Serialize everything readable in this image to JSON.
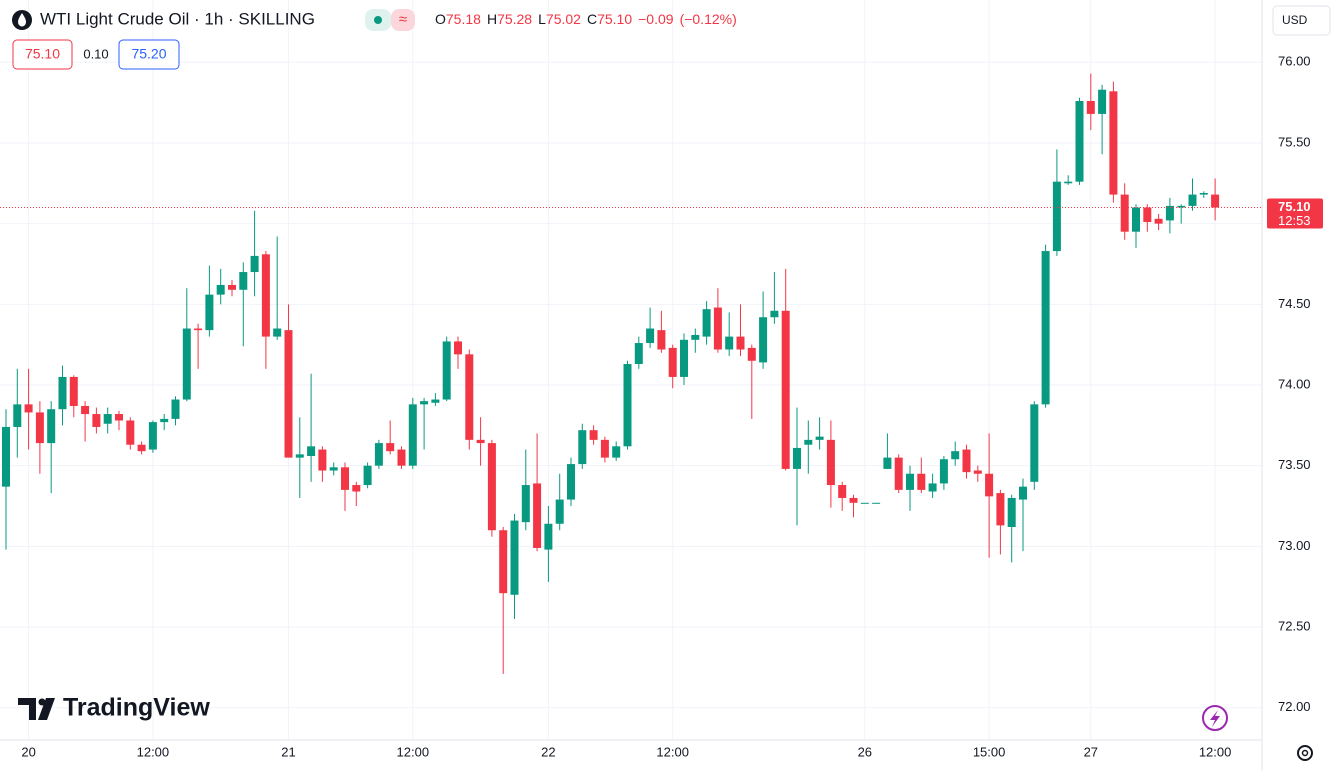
{
  "chart_data": {
    "type": "candlestick",
    "title": "WTI Light Crude Oil · 1h · SKILLING",
    "ohlc": {
      "names": [
        "O",
        "H",
        "L",
        "C"
      ],
      "values": [
        75.18,
        75.28,
        75.02,
        75.1
      ],
      "value_labels": [
        "75.18",
        "75.28",
        "75.02",
        "75.10"
      ]
    },
    "change": {
      "values": [
        -0.09,
        -0.12
      ],
      "value_labels": [
        "−0.09",
        "(−0.12%)"
      ]
    },
    "quote": {
      "values": [
        75.1,
        0.1,
        75.2
      ],
      "value_labels": [
        "75.10",
        "0.10",
        "75.20"
      ]
    },
    "currency": "USD",
    "last_price": {
      "value": 75.1,
      "label": "75.10"
    },
    "countdown": "12:53",
    "logo": "TradingView",
    "up_color": "#089981",
    "down_color": "#f23645",
    "grid": true,
    "xlim": [
      -0.53,
      111.15
    ],
    "xticks": [
      {
        "value": 2,
        "label": "20"
      },
      {
        "value": 13,
        "label": "12:00"
      },
      {
        "value": 25,
        "label": "21"
      },
      {
        "value": 36,
        "label": "12:00"
      },
      {
        "value": 48,
        "label": "22"
      },
      {
        "value": 59,
        "label": "12:00"
      },
      {
        "value": 76,
        "label": "26"
      },
      {
        "value": 87,
        "label": "15:00"
      },
      {
        "value": 96,
        "label": "27"
      },
      {
        "value": 107,
        "label": "12:00"
      }
    ],
    "ylim": [
      71.8,
      76.2
    ],
    "yticks": [
      {
        "value": 72,
        "label": "72.00"
      },
      {
        "value": 72.5,
        "label": "72.50"
      },
      {
        "value": 73,
        "label": "73.00"
      },
      {
        "value": 73.5,
        "label": "73.50"
      },
      {
        "value": 74,
        "label": "74.00"
      },
      {
        "value": 74.5,
        "label": "74.50"
      },
      {
        "value": 75,
        "label": "75.00"
      },
      {
        "value": 75.5,
        "label": "75.50"
      },
      {
        "value": 76,
        "label": "76.00"
      }
    ],
    "series": {
      "open": [
        73.37,
        73.74,
        73.88,
        73.83,
        73.64,
        73.85,
        74.05,
        73.87,
        73.82,
        73.76,
        73.82,
        73.78,
        73.63,
        73.6,
        73.77,
        73.79,
        73.91,
        74.35,
        74.34,
        74.56,
        74.62,
        74.59,
        74.7,
        74.81,
        74.3,
        74.34,
        73.55,
        73.56,
        73.6,
        73.47,
        73.49,
        73.38,
        73.38,
        73.5,
        73.64,
        73.6,
        73.5,
        73.88,
        73.89,
        73.91,
        74.27,
        74.19,
        73.66,
        73.64,
        73.1,
        72.7,
        73.15,
        73.39,
        72.98,
        73.14,
        73.29,
        73.51,
        73.72,
        73.66,
        73.55,
        73.62,
        74.13,
        74.26,
        74.34,
        74.23,
        74.05,
        74.28,
        74.3,
        74.48,
        74.22,
        74.3,
        74.23,
        74.14,
        74.42,
        74.46,
        73.48,
        73.63,
        73.66,
        73.66,
        73.38,
        73.3,
        73.27,
        73.27,
        73.48,
        73.55,
        73.35,
        73.45,
        73.34,
        73.39,
        73.54,
        73.6,
        73.47,
        73.45,
        73.33,
        73.12,
        73.29,
        73.4,
        73.88,
        74.83,
        75.25,
        75.26,
        75.76,
        75.68,
        75.82,
        75.18,
        74.95,
        75.1,
        75.03,
        75.02,
        75.1,
        75.11,
        75.18,
        75.18
      ],
      "high": [
        73.85,
        74.1,
        74.1,
        73.9,
        73.9,
        74.12,
        74.06,
        73.9,
        73.86,
        73.86,
        73.84,
        73.8,
        73.65,
        73.78,
        73.82,
        73.93,
        74.6,
        74.38,
        74.74,
        74.72,
        74.65,
        74.76,
        75.08,
        74.83,
        74.92,
        74.5,
        73.8,
        74.07,
        73.62,
        73.52,
        73.52,
        73.4,
        73.52,
        73.66,
        73.78,
        73.62,
        73.92,
        73.92,
        73.95,
        74.3,
        74.3,
        74.22,
        73.8,
        73.66,
        73.12,
        73.2,
        73.6,
        73.7,
        73.25,
        73.45,
        73.55,
        73.76,
        73.75,
        73.68,
        73.65,
        74.15,
        74.3,
        74.48,
        74.46,
        74.25,
        74.32,
        74.35,
        74.52,
        74.6,
        74.45,
        74.5,
        74.25,
        74.58,
        74.7,
        74.72,
        73.86,
        73.78,
        73.8,
        73.78,
        73.4,
        73.32,
        73.27,
        73.27,
        73.7,
        73.57,
        73.5,
        73.55,
        73.45,
        73.56,
        73.65,
        73.63,
        73.5,
        73.7,
        73.35,
        73.32,
        73.42,
        73.9,
        74.87,
        75.46,
        75.3,
        75.78,
        75.93,
        75.86,
        75.88,
        75.25,
        75.12,
        75.12,
        75.06,
        75.16,
        75.12,
        75.28,
        75.2,
        75.28
      ],
      "low": [
        72.98,
        73.55,
        73.6,
        73.45,
        73.33,
        73.75,
        73.8,
        73.65,
        73.7,
        73.7,
        73.72,
        73.6,
        73.57,
        73.58,
        73.72,
        73.75,
        73.9,
        74.1,
        74.3,
        74.5,
        74.55,
        74.24,
        74.55,
        74.1,
        74.28,
        73.55,
        73.3,
        73.4,
        73.4,
        73.44,
        73.22,
        73.25,
        73.36,
        73.48,
        73.57,
        73.48,
        73.48,
        73.6,
        73.87,
        73.9,
        74.1,
        73.6,
        73.5,
        73.06,
        72.21,
        72.55,
        73.1,
        72.97,
        72.78,
        73.1,
        73.25,
        73.48,
        73.63,
        73.52,
        73.53,
        73.6,
        74.1,
        74.23,
        74.2,
        73.98,
        74.0,
        74.2,
        74.25,
        74.2,
        74.18,
        74.18,
        73.79,
        74.1,
        74.38,
        73.47,
        73.13,
        73.45,
        73.6,
        73.24,
        73.22,
        73.18,
        73.27,
        73.27,
        73.48,
        73.33,
        73.22,
        73.33,
        73.3,
        73.35,
        73.5,
        73.42,
        73.4,
        72.93,
        72.95,
        72.9,
        72.97,
        73.35,
        73.86,
        74.8,
        75.24,
        75.24,
        75.58,
        75.43,
        75.13,
        74.9,
        74.85,
        74.95,
        74.96,
        74.94,
        75.0,
        75.08,
        75.16,
        75.02
      ],
      "close": [
        73.74,
        73.88,
        73.83,
        73.64,
        73.85,
        74.05,
        73.87,
        73.82,
        73.74,
        73.82,
        73.78,
        73.63,
        73.59,
        73.77,
        73.79,
        73.91,
        74.35,
        74.34,
        74.56,
        74.62,
        74.59,
        74.7,
        74.8,
        74.3,
        74.35,
        73.55,
        73.57,
        73.62,
        73.47,
        73.49,
        73.35,
        73.34,
        73.5,
        73.64,
        73.59,
        73.5,
        73.88,
        73.9,
        73.91,
        74.27,
        74.19,
        73.66,
        73.64,
        73.1,
        72.71,
        73.16,
        73.38,
        72.99,
        73.14,
        73.29,
        73.51,
        73.72,
        73.66,
        73.55,
        73.62,
        74.13,
        74.26,
        74.35,
        74.22,
        74.05,
        74.28,
        74.31,
        74.47,
        74.22,
        74.3,
        74.22,
        74.15,
        74.42,
        74.46,
        73.48,
        73.61,
        73.66,
        73.68,
        73.38,
        73.3,
        73.27,
        73.27,
        73.27,
        73.55,
        73.35,
        73.45,
        73.35,
        73.39,
        73.54,
        73.59,
        73.46,
        73.45,
        73.31,
        73.13,
        73.3,
        73.37,
        73.88,
        74.83,
        75.26,
        75.26,
        75.76,
        75.68,
        75.83,
        75.18,
        74.95,
        75.1,
        75.01,
        75.0,
        75.11,
        75.11,
        75.18,
        75.19,
        75.1
      ]
    }
  }
}
